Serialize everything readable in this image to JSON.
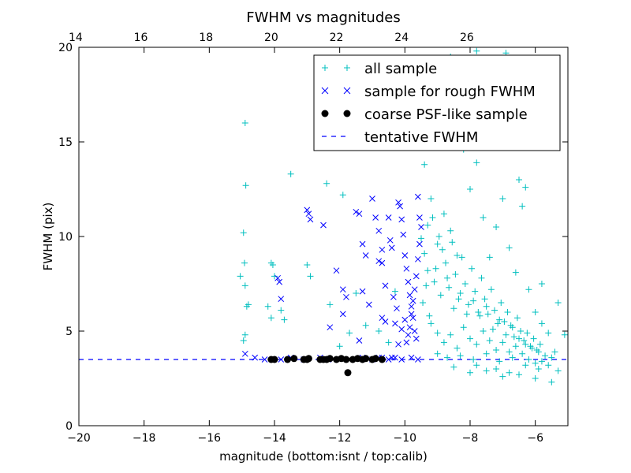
{
  "chart_data": {
    "type": "scatter",
    "title": "FWHM vs magnitudes",
    "xlabel": "magnitude (bottom:isnt / top:calib)",
    "ylabel": "FWHM (pix)",
    "xlim": [
      -20,
      -5
    ],
    "ylim": [
      0,
      20
    ],
    "x_ticks": [
      -20,
      -18,
      -16,
      -14,
      -12,
      -10,
      -8,
      -6
    ],
    "x_tick_labels": [
      "−20",
      "−18",
      "−16",
      "−14",
      "−12",
      "−10",
      "−8",
      "−6"
    ],
    "y_ticks": [
      0,
      5,
      10,
      15,
      20
    ],
    "y_tick_labels": [
      "0",
      "5",
      "10",
      "15",
      "20"
    ],
    "top_axis": {
      "label_offset": 34.1,
      "ticks": [
        14,
        16,
        18,
        20,
        22,
        24,
        26
      ],
      "tick_labels": [
        "14",
        "16",
        "18",
        "20",
        "22",
        "24",
        "26"
      ]
    },
    "legend_position": "top-right",
    "series": [
      {
        "name": "all sample",
        "marker": "plus",
        "color": "#00bfbf",
        "points": [
          [
            -15.05,
            7.9
          ],
          [
            -14.95,
            10.2
          ],
          [
            -14.9,
            16.0
          ],
          [
            -14.88,
            12.7
          ],
          [
            -14.92,
            8.6
          ],
          [
            -14.85,
            6.3
          ],
          [
            -14.8,
            6.4
          ],
          [
            -14.9,
            4.8
          ],
          [
            -14.95,
            4.5
          ],
          [
            -14.9,
            7.4
          ],
          [
            -14.1,
            8.6
          ],
          [
            -14.05,
            8.5
          ],
          [
            -14.0,
            7.9
          ],
          [
            -13.8,
            6.1
          ],
          [
            -13.7,
            5.6
          ],
          [
            -14.2,
            6.3
          ],
          [
            -14.1,
            5.7
          ],
          [
            -13.5,
            13.3
          ],
          [
            -13.0,
            8.5
          ],
          [
            -12.9,
            7.9
          ],
          [
            -12.4,
            12.8
          ],
          [
            -12.3,
            6.4
          ],
          [
            -11.9,
            12.2
          ],
          [
            -12.0,
            4.2
          ],
          [
            -11.7,
            4.9
          ],
          [
            -11.5,
            7.0
          ],
          [
            -11.2,
            5.3
          ],
          [
            -10.8,
            5.0
          ],
          [
            -10.5,
            4.4
          ],
          [
            -10.3,
            7.1
          ],
          [
            -9.4,
            13.8
          ],
          [
            -9.2,
            12.0
          ],
          [
            -9.0,
            9.6
          ],
          [
            -8.8,
            11.2
          ],
          [
            -8.6,
            10.3
          ],
          [
            -8.4,
            9.0
          ],
          [
            -8.2,
            14.6
          ],
          [
            -8.0,
            12.5
          ],
          [
            -7.8,
            13.9
          ],
          [
            -7.6,
            11.0
          ],
          [
            -7.4,
            8.9
          ],
          [
            -7.2,
            10.5
          ],
          [
            -7.0,
            12.0
          ],
          [
            -6.8,
            9.4
          ],
          [
            -6.6,
            8.1
          ],
          [
            -6.4,
            11.6
          ],
          [
            -6.2,
            7.2
          ],
          [
            -6.0,
            6.0
          ],
          [
            -5.8,
            5.4
          ],
          [
            -5.6,
            4.9
          ],
          [
            -9.3,
            8.2
          ],
          [
            -9.1,
            7.6
          ],
          [
            -8.9,
            6.9
          ],
          [
            -8.7,
            7.8
          ],
          [
            -8.5,
            6.2
          ],
          [
            -8.3,
            7.0
          ],
          [
            -8.1,
            5.9
          ],
          [
            -7.9,
            6.6
          ],
          [
            -7.7,
            5.8
          ],
          [
            -7.5,
            6.3
          ],
          [
            -7.3,
            5.1
          ],
          [
            -7.1,
            5.6
          ],
          [
            -6.9,
            4.8
          ],
          [
            -6.7,
            5.2
          ],
          [
            -6.5,
            4.6
          ],
          [
            -6.3,
            4.3
          ],
          [
            -6.1,
            4.1
          ],
          [
            -5.9,
            3.9
          ],
          [
            -5.7,
            3.7
          ],
          [
            -5.5,
            3.6
          ],
          [
            -9.2,
            5.4
          ],
          [
            -9.0,
            4.9
          ],
          [
            -8.8,
            4.4
          ],
          [
            -8.6,
            4.8
          ],
          [
            -8.4,
            4.1
          ],
          [
            -8.2,
            5.2
          ],
          [
            -8.0,
            4.6
          ],
          [
            -7.8,
            4.3
          ],
          [
            -7.6,
            5.0
          ],
          [
            -7.4,
            4.5
          ],
          [
            -7.2,
            4.0
          ],
          [
            -7.0,
            4.4
          ],
          [
            -6.8,
            3.9
          ],
          [
            -6.6,
            4.2
          ],
          [
            -6.4,
            3.8
          ],
          [
            -6.2,
            3.5
          ],
          [
            -6.0,
            3.3
          ],
          [
            -5.8,
            3.4
          ],
          [
            -5.6,
            3.2
          ],
          [
            -5.4,
            3.9
          ],
          [
            -8.5,
            3.1
          ],
          [
            -8.0,
            2.8
          ],
          [
            -7.5,
            2.9
          ],
          [
            -7.0,
            2.6
          ],
          [
            -6.5,
            2.7
          ],
          [
            -6.0,
            2.5
          ],
          [
            -5.5,
            2.3
          ],
          [
            -7.8,
            3.2
          ],
          [
            -7.2,
            3.0
          ],
          [
            -6.8,
            2.8
          ],
          [
            -9.0,
            3.8
          ],
          [
            -8.7,
            3.6
          ],
          [
            -8.3,
            3.7
          ],
          [
            -7.9,
            3.5
          ],
          [
            -7.5,
            3.8
          ],
          [
            -7.1,
            3.4
          ],
          [
            -6.7,
            3.6
          ],
          [
            -6.3,
            3.2
          ],
          [
            -5.9,
            3.0
          ],
          [
            -5.3,
            2.9
          ],
          [
            -8.6,
            19.5
          ],
          [
            -8.1,
            18.4
          ],
          [
            -7.8,
            19.8
          ],
          [
            -7.4,
            17.3
          ],
          [
            -6.9,
            19.7
          ],
          [
            -6.5,
            13.0
          ],
          [
            -6.3,
            12.6
          ],
          [
            -5.8,
            7.5
          ],
          [
            -5.3,
            6.5
          ],
          [
            -5.1,
            4.8
          ],
          [
            -9.5,
            9.9
          ],
          [
            -9.4,
            9.1
          ],
          [
            -9.3,
            10.6
          ],
          [
            -9.35,
            7.4
          ],
          [
            -9.45,
            6.5
          ],
          [
            -9.25,
            5.8
          ],
          [
            -9.15,
            11.0
          ],
          [
            -9.05,
            8.3
          ],
          [
            -8.95,
            10.0
          ],
          [
            -8.85,
            9.3
          ],
          [
            -8.75,
            8.6
          ],
          [
            -8.65,
            7.3
          ],
          [
            -8.55,
            9.7
          ],
          [
            -8.45,
            8.0
          ],
          [
            -8.35,
            6.7
          ],
          [
            -8.25,
            8.9
          ],
          [
            -8.15,
            7.5
          ],
          [
            -8.05,
            6.4
          ],
          [
            -7.95,
            8.3
          ],
          [
            -7.85,
            7.1
          ],
          [
            -7.75,
            6.0
          ],
          [
            -7.65,
            7.8
          ],
          [
            -7.55,
            6.7
          ],
          [
            -7.45,
            5.9
          ],
          [
            -7.35,
            7.2
          ],
          [
            -7.25,
            6.1
          ],
          [
            -7.15,
            5.4
          ],
          [
            -7.05,
            6.5
          ],
          [
            -6.95,
            5.5
          ],
          [
            -6.85,
            6.0
          ],
          [
            -6.75,
            5.3
          ],
          [
            -6.65,
            4.7
          ],
          [
            -6.55,
            5.7
          ],
          [
            -6.45,
            5.0
          ],
          [
            -6.35,
            4.5
          ],
          [
            -6.25,
            4.9
          ],
          [
            -6.15,
            4.2
          ],
          [
            -6.05,
            4.6
          ],
          [
            -5.95,
            4.0
          ],
          [
            -5.85,
            4.3
          ]
        ]
      },
      {
        "name": "sample for rough FWHM",
        "marker": "x",
        "color": "#0000ff",
        "points": [
          [
            -14.9,
            3.8
          ],
          [
            -14.6,
            3.6
          ],
          [
            -14.3,
            3.5
          ],
          [
            -13.9,
            7.8
          ],
          [
            -13.85,
            7.6
          ],
          [
            -13.8,
            6.7
          ],
          [
            -13.0,
            11.4
          ],
          [
            -12.95,
            11.2
          ],
          [
            -12.9,
            10.9
          ],
          [
            -12.5,
            10.6
          ],
          [
            -12.1,
            8.2
          ],
          [
            -12.3,
            5.2
          ],
          [
            -11.9,
            7.2
          ],
          [
            -11.8,
            6.8
          ],
          [
            -11.9,
            5.9
          ],
          [
            -11.5,
            11.3
          ],
          [
            -11.4,
            11.2
          ],
          [
            -11.3,
            9.6
          ],
          [
            -11.2,
            9.0
          ],
          [
            -11.3,
            7.1
          ],
          [
            -11.4,
            4.5
          ],
          [
            -11.1,
            6.4
          ],
          [
            -11.0,
            12.0
          ],
          [
            -10.9,
            11.0
          ],
          [
            -10.8,
            10.3
          ],
          [
            -10.7,
            9.3
          ],
          [
            -10.8,
            8.7
          ],
          [
            -10.7,
            8.6
          ],
          [
            -10.6,
            7.4
          ],
          [
            -10.7,
            5.7
          ],
          [
            -10.6,
            5.5
          ],
          [
            -10.5,
            11.0
          ],
          [
            -10.45,
            9.8
          ],
          [
            -10.4,
            9.4
          ],
          [
            -10.35,
            6.8
          ],
          [
            -10.3,
            5.4
          ],
          [
            -10.25,
            6.2
          ],
          [
            -10.2,
            11.8
          ],
          [
            -10.15,
            11.6
          ],
          [
            -10.1,
            10.9
          ],
          [
            -10.05,
            10.1
          ],
          [
            -10.0,
            9.0
          ],
          [
            -9.95,
            8.3
          ],
          [
            -9.9,
            7.6
          ],
          [
            -9.85,
            6.9
          ],
          [
            -9.8,
            6.3
          ],
          [
            -9.75,
            5.7
          ],
          [
            -9.7,
            5.0
          ],
          [
            -9.65,
            4.6
          ],
          [
            -9.6,
            12.1
          ],
          [
            -9.55,
            11.0
          ],
          [
            -9.5,
            10.5
          ],
          [
            -9.55,
            9.6
          ],
          [
            -9.6,
            8.8
          ],
          [
            -9.65,
            7.9
          ],
          [
            -9.7,
            7.2
          ],
          [
            -9.75,
            6.6
          ],
          [
            -9.8,
            5.9
          ],
          [
            -9.85,
            5.2
          ],
          [
            -9.9,
            4.8
          ],
          [
            -9.95,
            4.4
          ],
          [
            -10.0,
            5.6
          ],
          [
            -10.1,
            5.1
          ],
          [
            -10.2,
            4.3
          ],
          [
            -10.3,
            3.6
          ],
          [
            -10.5,
            3.5
          ],
          [
            -10.8,
            3.6
          ],
          [
            -11.0,
            3.5
          ],
          [
            -11.3,
            3.6
          ],
          [
            -11.7,
            3.5
          ],
          [
            -12.2,
            3.5
          ],
          [
            -12.6,
            3.6
          ],
          [
            -13.1,
            3.5
          ],
          [
            -13.5,
            3.6
          ],
          [
            -13.8,
            3.5
          ],
          [
            -10.4,
            3.6
          ],
          [
            -10.1,
            3.5
          ],
          [
            -9.8,
            3.6
          ],
          [
            -9.6,
            3.5
          ],
          [
            -10.7,
            3.6
          ]
        ]
      },
      {
        "name": "coarse PSF-like sample",
        "marker": "circle",
        "color": "#000000",
        "points": [
          [
            -14.1,
            3.5
          ],
          [
            -14.0,
            3.5
          ],
          [
            -13.6,
            3.5
          ],
          [
            -13.4,
            3.55
          ],
          [
            -13.1,
            3.5
          ],
          [
            -13.0,
            3.5
          ],
          [
            -12.95,
            3.55
          ],
          [
            -12.6,
            3.5
          ],
          [
            -12.5,
            3.5
          ],
          [
            -12.4,
            3.5
          ],
          [
            -12.3,
            3.55
          ],
          [
            -12.1,
            3.5
          ],
          [
            -11.95,
            3.55
          ],
          [
            -11.8,
            3.5
          ],
          [
            -11.75,
            2.8
          ],
          [
            -11.6,
            3.5
          ],
          [
            -11.45,
            3.55
          ],
          [
            -11.3,
            3.5
          ],
          [
            -11.2,
            3.55
          ],
          [
            -11.0,
            3.5
          ],
          [
            -10.9,
            3.55
          ],
          [
            -10.7,
            3.5
          ]
        ]
      },
      {
        "name": "tentative FWHM",
        "marker": "dashed-line",
        "color": "#0000ff",
        "y": 3.5
      }
    ]
  }
}
